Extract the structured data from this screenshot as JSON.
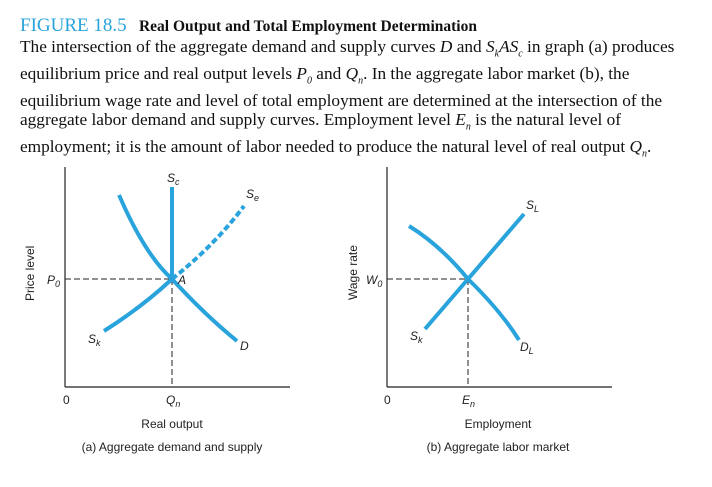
{
  "caption": {
    "figure_number": "FIGURE 18.5",
    "title": "Real Output and Total Employment Determination",
    "text_parts": [
      "The intersection of the aggregate demand and supply curves ",
      "D",
      " and ",
      "S",
      "k",
      "AS",
      "c",
      " in graph (a) produces equilibrium price and real output levels ",
      "P",
      "0",
      " and ",
      "Q",
      "n",
      ". In the aggregate labor market (b), the equilibrium wage rate and level of total employment are determined at the intersection of the aggregate labor demand and supply curves. Employment level ",
      "E",
      "n",
      " is the natural level of employment; it is the amount of labor needed to produce the natural level of real output ",
      "Q",
      "n",
      "."
    ]
  },
  "colors": {
    "figure_label": "#29a3dc",
    "curve": "#29a3dc",
    "axis": "#222222"
  },
  "panel_a": {
    "y_axis_label": "Price level",
    "x_axis_label": "Real output",
    "subtitle": "(a) Aggregate demand and supply",
    "origin": "0",
    "price_label": {
      "main": "P",
      "sub": "0"
    },
    "output_label": {
      "main": "Q",
      "sub": "n"
    },
    "point_label": "A",
    "curves": {
      "sc": {
        "main": "S",
        "sub": "c"
      },
      "se": {
        "main": "S",
        "sub": "e"
      },
      "sk": {
        "main": "S",
        "sub": "k"
      },
      "demand": "D"
    }
  },
  "panel_b": {
    "y_axis_label": "Wage rate",
    "x_axis_label": "Employment",
    "subtitle": "(b) Aggregate labor market",
    "origin": "0",
    "wage_label": {
      "main": "W",
      "sub": "0"
    },
    "employment_label": {
      "main": "E",
      "sub": "n"
    },
    "curves": {
      "sl": {
        "main": "S",
        "sub": "L"
      },
      "sk": {
        "main": "S",
        "sub": "k"
      },
      "dl": {
        "main": "D",
        "sub": "L"
      }
    }
  }
}
